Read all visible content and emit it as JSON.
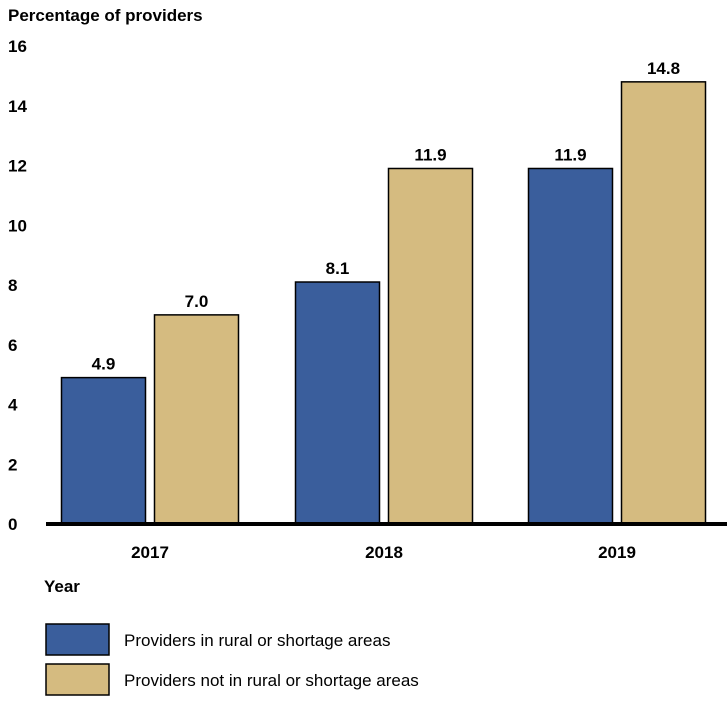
{
  "chart_data": {
    "type": "bar",
    "title": "",
    "ylabel": "Percentage of providers",
    "xlabel": "Year",
    "categories": [
      "2017",
      "2018",
      "2019"
    ],
    "ylim": [
      0,
      16
    ],
    "yticks": [
      0,
      2,
      4,
      6,
      8,
      10,
      12,
      14,
      16
    ],
    "grid": false,
    "legend_position": "bottom-left",
    "series": [
      {
        "name": "Providers in rural or shortage areas",
        "values": [
          4.9,
          8.1,
          11.9
        ],
        "labels": [
          "4.9",
          "8.1",
          "11.9"
        ],
        "color": "#3A5E9C"
      },
      {
        "name": "Providers not in rural or shortage areas",
        "values": [
          7.0,
          11.9,
          14.8
        ],
        "labels": [
          "7.0",
          "11.9",
          "14.8"
        ],
        "color": "#D5BB80"
      }
    ]
  }
}
